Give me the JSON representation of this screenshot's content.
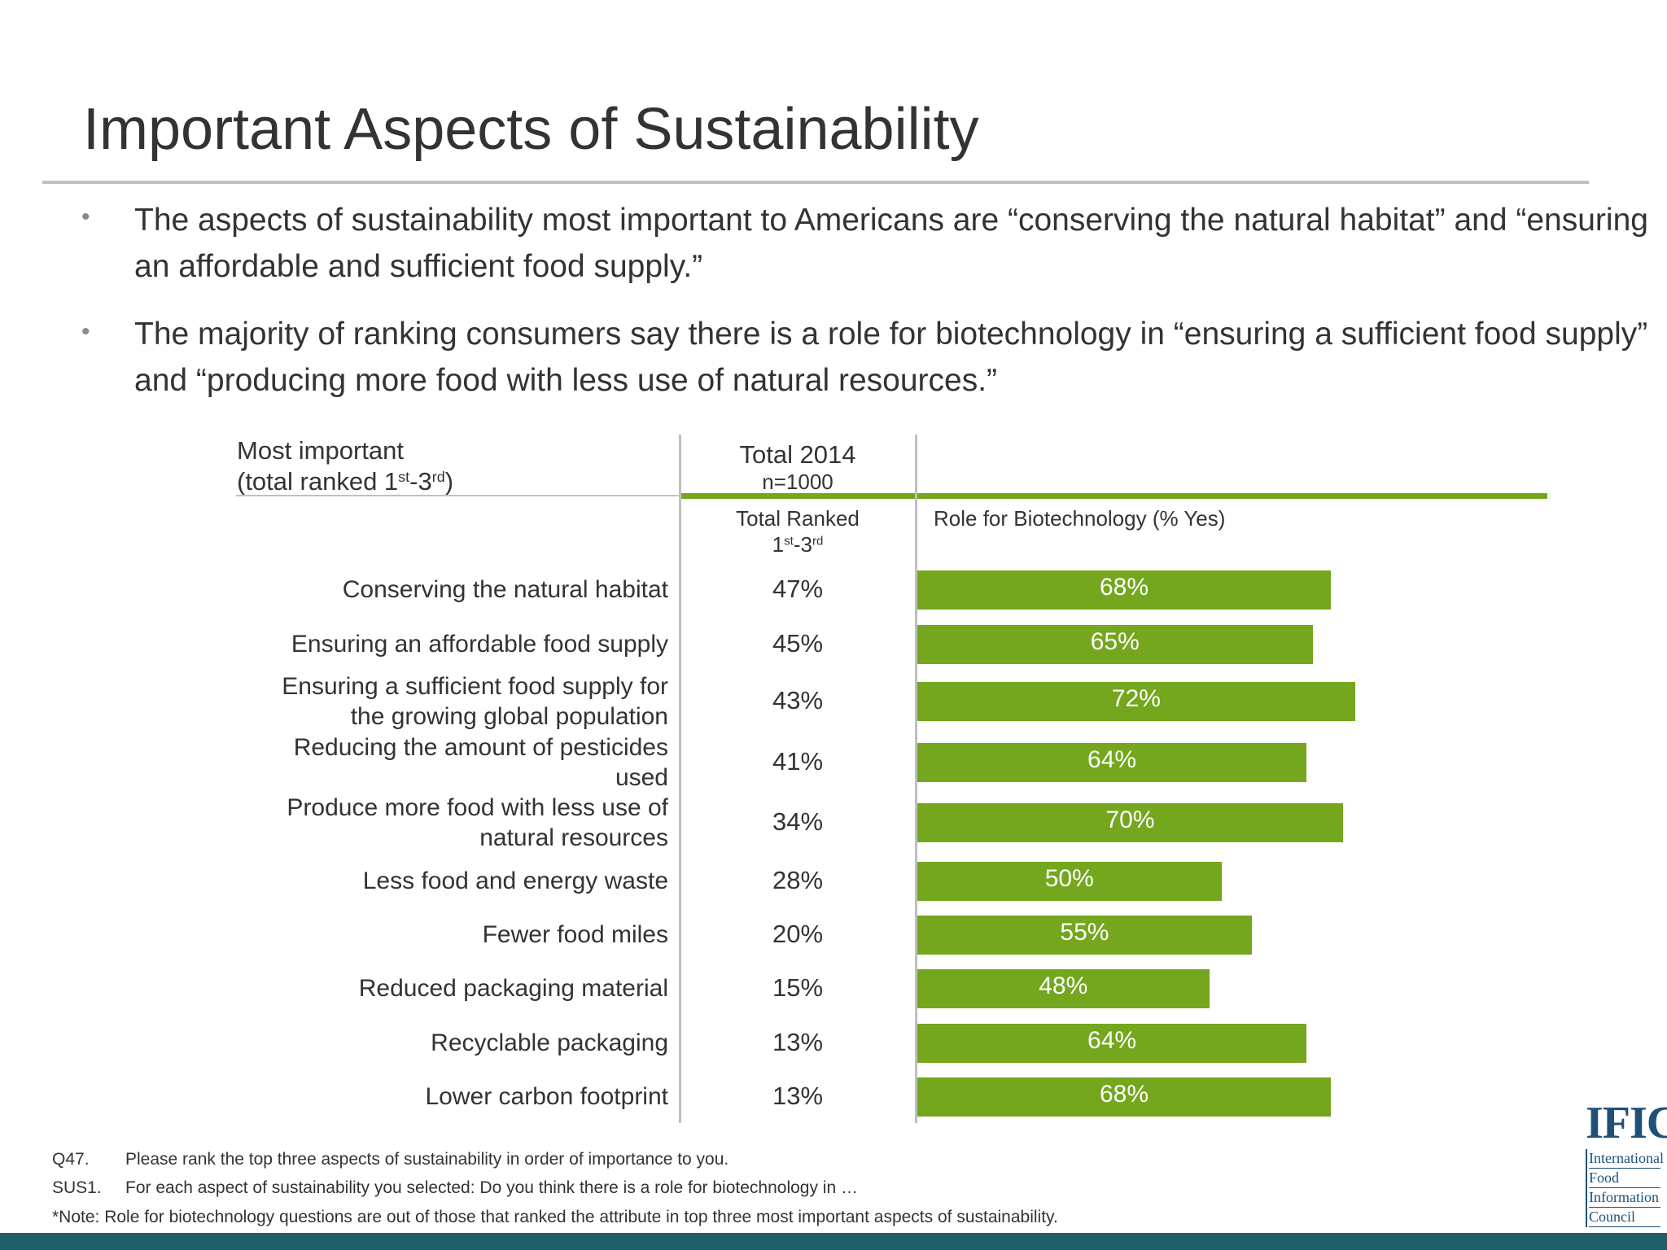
{
  "title": "Important Aspects of Sustainability",
  "bullets": [
    "The aspects of sustainability most important to Americans are “conserving the natural habitat” and “ensuring an affordable and sufficient food supply.”",
    "The majority of ranking consumers say there is a role for biotechnology in “ensuring a sufficient food supply” and “producing more food with less use of natural resources.”"
  ],
  "table": {
    "left_header_line1": "Most important",
    "left_header_line2_pre": "(total ranked 1",
    "left_header_sup1": "st",
    "left_header_mid": "-3",
    "left_header_sup2": "rd",
    "left_header_post": ")",
    "col_header": "Total 2014",
    "col_n": "n=1000",
    "col_sub_line1": "Total Ranked",
    "col_sub_pre": "1",
    "col_sub_sup1": "st",
    "col_sub_mid": "-3",
    "col_sub_sup2": "rd",
    "bar_header": "Role for Biotechnology (% Yes)"
  },
  "chart_data": {
    "type": "bar",
    "orientation": "horizontal",
    "categories": [
      "Conserving the natural habitat",
      "Ensuring an affordable food supply",
      "Ensuring a sufficient food supply for the growing global population",
      "Reducing the amount of pesticides used",
      "Produce more food with less use of natural resources",
      "Less food and energy waste",
      "Fewer food miles",
      "Reduced packaging material",
      "Recyclable packaging",
      "Lower carbon footprint"
    ],
    "total_ranked": [
      "47%",
      "45%",
      "43%",
      "41%",
      "34%",
      "28%",
      "20%",
      "15%",
      "13%",
      "13%"
    ],
    "series": [
      {
        "name": "Role for Biotechnology (% Yes)",
        "values": [
          68,
          65,
          72,
          64,
          70,
          50,
          55,
          48,
          64,
          68
        ]
      }
    ],
    "value_labels": [
      "68%",
      "65%",
      "72%",
      "64%",
      "70%",
      "50%",
      "55%",
      "48%",
      "64%",
      "68%"
    ],
    "bar_color": "#74a61e"
  },
  "footnotes": [
    {
      "code": "Q47.",
      "text": "Please rank the top three aspects of sustainability in order of importance to you."
    },
    {
      "code": "SUS1.",
      "text": "For each aspect of sustainability you selected: Do you think there is a role for biotechnology in …"
    },
    {
      "code": "",
      "text": "*Note: Role for biotechnology questions are out of those that ranked the attribute in top three most important aspects of sustainability."
    }
  ],
  "logo": {
    "mark": "IFIC",
    "lines": [
      "International",
      "Food",
      "Information",
      "Council"
    ]
  },
  "colors": {
    "accent": "#74a61e",
    "bottom_bar": "#1f5f6b",
    "logo": "#1f5077"
  }
}
